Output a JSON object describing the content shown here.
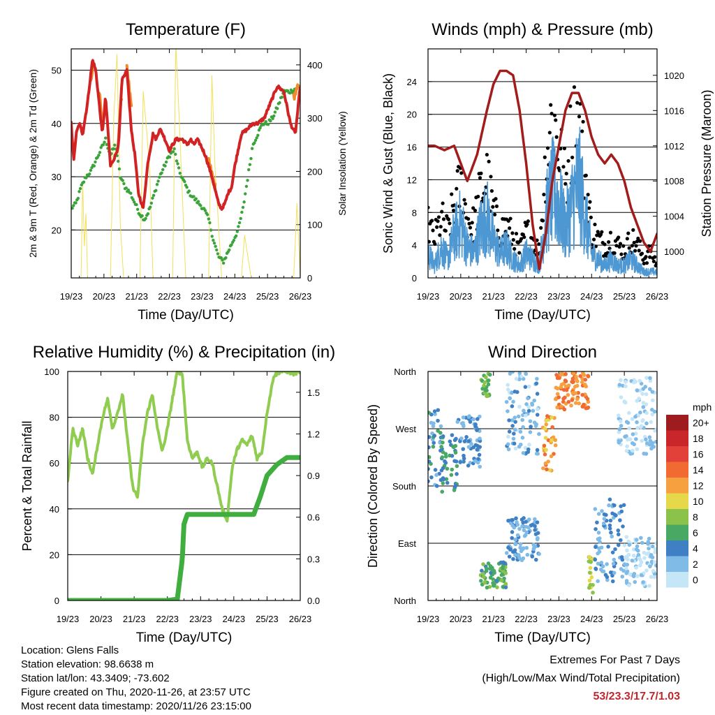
{
  "chart_data": [
    {
      "id": "temperature",
      "type": "line",
      "title": "Temperature (F)",
      "xlabel": "Time (Day/UTC)",
      "ylabel": "2m & 9m T (Red, Orange) & 2m Td (Green)",
      "y2label": "Solar Insolation (Yellow)",
      "x_ticks": [
        "19/23",
        "20/23",
        "21/23",
        "22/23",
        "23/23",
        "24/23",
        "25/23",
        "26/23"
      ],
      "xlim": [
        0,
        7
      ],
      "ylim": [
        11,
        54
      ],
      "y_ticks": [
        20,
        30,
        40,
        50
      ],
      "y2lim": [
        0,
        430
      ],
      "y2_ticks": [
        0,
        100,
        200,
        300,
        400
      ],
      "grid": true,
      "series": [
        {
          "role": "t2m",
          "color": "#d12323",
          "x": [
            0,
            0.08,
            0.15,
            0.25,
            0.35,
            0.5,
            0.65,
            0.75,
            0.85,
            0.95,
            1.05,
            1.2,
            1.35,
            1.45,
            1.55,
            1.7,
            1.85,
            1.95,
            2.05,
            2.2,
            2.35,
            2.5,
            2.6,
            2.7,
            2.8,
            3.0,
            3.2,
            3.4,
            3.55,
            3.65,
            3.75,
            3.85,
            3.95,
            4.1,
            4.3,
            4.5,
            4.6,
            4.7,
            4.8,
            4.9,
            5.0,
            5.2,
            5.4,
            5.55,
            5.7,
            5.9,
            6.1,
            6.3,
            6.5,
            6.7,
            6.85,
            7.0
          ],
          "values": [
            40,
            33,
            38,
            40,
            38,
            44,
            52,
            50,
            44,
            38,
            45,
            32,
            34,
            36,
            48,
            50,
            38,
            34,
            27,
            24,
            33,
            38,
            37,
            39,
            38,
            35,
            37,
            37,
            36,
            37,
            36,
            37,
            36,
            34,
            30,
            25,
            24,
            25,
            27,
            28,
            32,
            38,
            39,
            40,
            40,
            41,
            44,
            47,
            46,
            40,
            38,
            47
          ]
        },
        {
          "role": "t9m",
          "color": "#f08a2a",
          "x": [
            0.6,
            0.7,
            0.85,
            0.95,
            1.4,
            1.55,
            1.7,
            1.85,
            4.2,
            4.4,
            6.8,
            6.95
          ],
          "values": [
            48,
            52,
            46,
            40,
            34,
            46,
            51,
            42,
            33,
            28,
            45,
            47
          ]
        },
        {
          "role": "td2m",
          "color": "#3aa33a",
          "x": [
            0,
            0.15,
            0.3,
            0.45,
            0.6,
            0.75,
            0.9,
            1.05,
            1.2,
            1.35,
            1.5,
            1.65,
            1.8,
            1.95,
            2.1,
            2.25,
            2.4,
            2.55,
            2.7,
            2.85,
            3.0,
            3.15,
            3.3,
            3.45,
            3.6,
            3.75,
            3.9,
            4.05,
            4.2,
            4.35,
            4.5,
            4.65,
            4.8,
            4.95,
            5.1,
            5.25,
            5.4,
            5.55,
            5.7,
            5.85,
            6.0,
            6.15,
            6.3,
            6.5,
            6.7,
            7.0
          ],
          "values": [
            24,
            25,
            28,
            30,
            31,
            33,
            35,
            37,
            34,
            36,
            30,
            28,
            27,
            25,
            23,
            22,
            24,
            27,
            30,
            32,
            34,
            35,
            31,
            29,
            27,
            26,
            25,
            24,
            22,
            18,
            15,
            14,
            16,
            18,
            20,
            24,
            30,
            36,
            38,
            40,
            40,
            41,
            43,
            46,
            46,
            47
          ]
        },
        {
          "role": "solar",
          "color": "#f2e05a",
          "x": [
            0.3,
            0.35,
            0.4,
            0.45,
            0.5,
            1.2,
            1.3,
            1.4,
            1.5,
            1.6,
            2.1,
            2.2,
            2.3,
            2.4,
            2.5,
            3.1,
            3.2,
            3.3,
            3.4,
            3.5,
            4.2,
            4.3,
            4.4,
            4.5,
            4.6,
            5.2,
            5.3,
            5.4,
            5.5,
            6.8,
            6.9,
            7.0
          ],
          "values": [
            0,
            180,
            60,
            120,
            0,
            0,
            300,
            420,
            100,
            0,
            0,
            350,
            280,
            200,
            0,
            0,
            440,
            300,
            150,
            0,
            0,
            380,
            200,
            100,
            0,
            0,
            80,
            40,
            0,
            0,
            140,
            0
          ]
        }
      ]
    },
    {
      "id": "winds",
      "type": "scatter",
      "title": "Winds (mph) & Pressure (mb)",
      "xlabel": "Time (Day/UTC)",
      "ylabel": "Sonic Wind & Gust (Blue, Black)",
      "y2label": "Station Pressure (Maroon)",
      "x_ticks": [
        "19/23",
        "20/23",
        "21/23",
        "22/23",
        "23/23",
        "24/23",
        "25/23",
        "26/23"
      ],
      "xlim": [
        0,
        7
      ],
      "ylim": [
        0,
        28
      ],
      "y_ticks": [
        0,
        4,
        8,
        12,
        16,
        20,
        24
      ],
      "y2lim": [
        997,
        1023
      ],
      "y2_ticks": [
        1000,
        1004,
        1008,
        1012,
        1016,
        1020
      ],
      "grid": true,
      "series": [
        {
          "role": "wind",
          "color": "#4d97d3",
          "x": [
            0,
            0.2,
            0.4,
            0.6,
            0.8,
            1.0,
            1.2,
            1.4,
            1.6,
            1.8,
            2.0,
            2.2,
            2.4,
            2.6,
            2.8,
            3.0,
            3.2,
            3.4,
            3.6,
            3.8,
            4.0,
            4.2,
            4.4,
            4.6,
            4.8,
            5.0,
            5.2,
            5.4,
            5.6,
            5.8,
            6.0,
            6.2,
            6.4,
            6.6,
            6.8,
            7.0
          ],
          "values": [
            4,
            2,
            5,
            3,
            7,
            9,
            5,
            4,
            8,
            10,
            6,
            4,
            5,
            3,
            2,
            4,
            3,
            2,
            10,
            14,
            12,
            8,
            12,
            16,
            10,
            4,
            3,
            2,
            3,
            2,
            2,
            3,
            2,
            1,
            1,
            1
          ]
        },
        {
          "role": "gust",
          "color": "#000000",
          "x": [
            0,
            0.2,
            0.4,
            0.6,
            0.8,
            1.0,
            1.2,
            1.4,
            1.6,
            1.8,
            2.0,
            2.2,
            2.4,
            2.6,
            2.8,
            3.0,
            3.2,
            3.4,
            3.6,
            3.8,
            4.0,
            4.2,
            4.4,
            4.6,
            4.8,
            5.0,
            5.2,
            5.4,
            5.6,
            5.8,
            6.0,
            6.2,
            6.4,
            6.6,
            6.8,
            7.0
          ],
          "values": [
            8,
            6,
            9,
            7,
            11,
            14,
            9,
            8,
            13,
            15,
            10,
            7,
            8,
            6,
            4,
            7,
            6,
            4,
            18,
            25,
            20,
            14,
            22,
            24,
            16,
            7,
            6,
            5,
            6,
            5,
            4,
            6,
            5,
            3,
            4,
            2
          ]
        },
        {
          "role": "pressure",
          "color": "#a31c1c",
          "x": [
            0,
            0.2,
            0.5,
            0.8,
            1.0,
            1.2,
            1.5,
            1.8,
            2.0,
            2.2,
            2.4,
            2.6,
            2.8,
            3.0,
            3.2,
            3.4,
            3.6,
            3.8,
            4.0,
            4.2,
            4.4,
            4.6,
            4.8,
            5.0,
            5.2,
            5.4,
            5.6,
            5.8,
            6.0,
            6.2,
            6.4,
            6.6,
            6.8,
            7.0
          ],
          "values": [
            1012,
            1012,
            1011.5,
            1012,
            1010,
            1008,
            1011,
            1016,
            1019,
            1020.5,
            1020.5,
            1020,
            1016,
            1010,
            1003,
            998,
            1002,
            1008,
            1012,
            1016,
            1018,
            1018,
            1016,
            1013,
            1011,
            1010,
            1011,
            1010,
            1008,
            1005,
            1003,
            1001,
            1000,
            1002
          ]
        }
      ]
    },
    {
      "id": "humidity",
      "type": "line",
      "title": "Relative Humidity (%) & Precipitation (in)",
      "xlabel": "Time (Day/UTC)",
      "ylabel": "Percent & Total Rainfall",
      "x_ticks": [
        "19/23",
        "20/23",
        "21/23",
        "22/23",
        "23/23",
        "24/23",
        "25/23",
        "26/23"
      ],
      "xlim": [
        0,
        7
      ],
      "ylim": [
        0,
        100
      ],
      "y_ticks": [
        0,
        20,
        40,
        60,
        80,
        100
      ],
      "y2lim": [
        0,
        1.65
      ],
      "y2_ticks": [
        "0.0",
        "0.3",
        "0.6",
        "0.9",
        "1.2",
        "1.5"
      ],
      "grid": true,
      "series": [
        {
          "role": "rh",
          "color": "#8fcc4f",
          "x": [
            0,
            0.15,
            0.3,
            0.45,
            0.6,
            0.75,
            0.9,
            1.05,
            1.2,
            1.35,
            1.5,
            1.65,
            1.8,
            1.95,
            2.1,
            2.25,
            2.4,
            2.55,
            2.7,
            2.85,
            3.0,
            3.15,
            3.3,
            3.45,
            3.6,
            3.75,
            3.9,
            4.05,
            4.2,
            4.35,
            4.5,
            4.65,
            4.8,
            4.95,
            5.1,
            5.25,
            5.4,
            5.55,
            5.7,
            5.85,
            6.0,
            6.2,
            6.4,
            6.6,
            6.8,
            7.0
          ],
          "values": [
            52,
            75,
            68,
            75,
            62,
            55,
            68,
            80,
            88,
            75,
            82,
            90,
            70,
            50,
            45,
            68,
            82,
            90,
            75,
            65,
            75,
            88,
            100,
            99,
            70,
            62,
            65,
            58,
            62,
            60,
            50,
            40,
            35,
            58,
            66,
            70,
            68,
            72,
            62,
            65,
            82,
            98,
            100,
            100,
            99,
            100
          ]
        },
        {
          "role": "precip",
          "color": "#3fae3f",
          "x": [
            0,
            1.0,
            2.0,
            3.0,
            3.3,
            3.45,
            3.5,
            3.6,
            4.0,
            5.0,
            5.6,
            5.8,
            6.0,
            6.3,
            6.6,
            7.0
          ],
          "values": [
            0,
            0,
            0,
            0,
            0.01,
            0.3,
            0.55,
            0.62,
            0.62,
            0.62,
            0.62,
            0.75,
            0.9,
            0.98,
            1.03,
            1.03
          ]
        }
      ]
    },
    {
      "id": "direction",
      "type": "scatter",
      "title": "Wind Direction",
      "xlabel": "Time (Day/UTC)",
      "ylabel": "Direction (Colored By Speed)",
      "x_ticks": [
        "19/23",
        "20/23",
        "21/23",
        "22/23",
        "23/23",
        "24/23",
        "25/23",
        "26/23"
      ],
      "xlim": [
        0,
        7
      ],
      "ylim": [
        0,
        360
      ],
      "y_ticks": [
        "North",
        "East",
        "South",
        "West",
        "North"
      ],
      "grid": true,
      "legend": {
        "title": "mph",
        "placement": "right",
        "labels": [
          "20+",
          "18",
          "16",
          "14",
          "12",
          "10",
          "8",
          "6",
          "4",
          "2",
          "0"
        ],
        "colors": [
          "#9e1b1e",
          "#c8262a",
          "#e2413a",
          "#f06a32",
          "#f6a040",
          "#e6d84a",
          "#8ac24a",
          "#48a864",
          "#3f80c4",
          "#7fbbe6",
          "#c5e6f7"
        ]
      },
      "groups": [
        {
          "x": [
            0,
            0.4
          ],
          "y": [
            180,
            300
          ],
          "speed": 4
        },
        {
          "x": [
            0.4,
            0.9
          ],
          "y": [
            170,
            260
          ],
          "speed": 5
        },
        {
          "x": [
            0.9,
            1.6
          ],
          "y": [
            210,
            290
          ],
          "speed": 3
        },
        {
          "x": [
            1.6,
            1.9
          ],
          "y": [
            320,
            360
          ],
          "speed": 7
        },
        {
          "x": [
            1.6,
            2.4
          ],
          "y": [
            20,
            60
          ],
          "speed": 6
        },
        {
          "x": [
            2.4,
            3.4
          ],
          "y": [
            230,
            360
          ],
          "speed": 2
        },
        {
          "x": [
            2.4,
            3.4
          ],
          "y": [
            60,
            130
          ],
          "speed": 3
        },
        {
          "x": [
            3.5,
            3.9
          ],
          "y": [
            200,
            290
          ],
          "speed": 12
        },
        {
          "x": [
            3.9,
            4.9
          ],
          "y": [
            300,
            360
          ],
          "speed": 13
        },
        {
          "x": [
            4.9,
            5.1
          ],
          "y": [
            10,
            70
          ],
          "speed": 9
        },
        {
          "x": [
            5.1,
            6.0
          ],
          "y": [
            30,
            160
          ],
          "speed": 3
        },
        {
          "x": [
            5.8,
            7.0
          ],
          "y": [
            230,
            350
          ],
          "speed": 1
        },
        {
          "x": [
            6.0,
            7.0
          ],
          "y": [
            20,
            100
          ],
          "speed": 1
        }
      ]
    }
  ],
  "info": {
    "location": "Location: Glens Falls",
    "elevation": "Station elevation: 98.6638 m",
    "latlon": "Station lat/lon: 43.3409; -73.602",
    "created": "Figure created on Thu, 2020-11-26, at 23:57 UTC",
    "recent": "Most recent data timestamp: 2020/11/26 23:15:00"
  },
  "extremes": {
    "heading": "Extremes For Past 7 Days",
    "subheading": "(High/Low/Max Wind/Total Precipitation)",
    "values": "53/23.3/17.7/1.03",
    "value_color": "#c0272d"
  }
}
